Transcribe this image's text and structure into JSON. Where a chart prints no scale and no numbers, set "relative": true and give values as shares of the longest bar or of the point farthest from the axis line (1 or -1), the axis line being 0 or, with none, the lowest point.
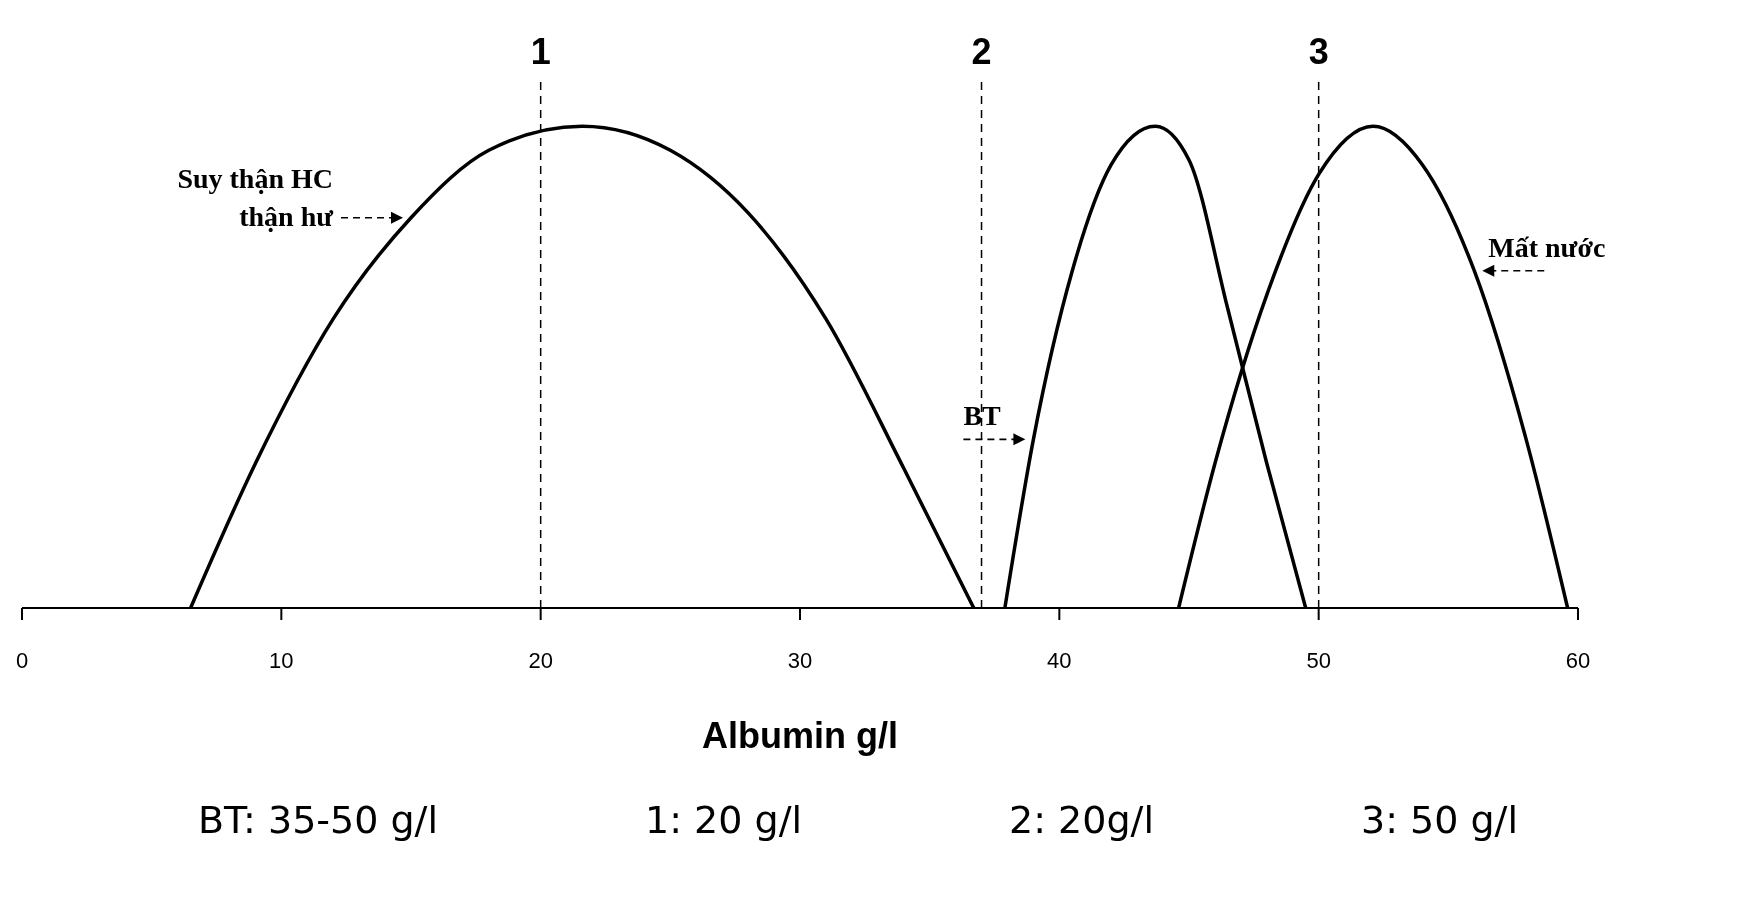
{
  "chart_data": {
    "type": "line",
    "relative": true,
    "xlabel": "Albumin g/l",
    "xlim": [
      0,
      60
    ],
    "xticks": [
      0,
      10,
      20,
      30,
      40,
      50,
      60
    ],
    "grid": false,
    "legend": false,
    "marker": "none",
    "line_style": "solid",
    "series": [
      {
        "name": "Suy thận HC\nthận hư",
        "color": "#000000",
        "x": [
          6.5,
          9,
          12,
          15,
          18,
          21.6,
          25,
          28,
          31,
          34,
          36.7
        ],
        "values": [
          0,
          0.3,
          0.6,
          0.81,
          0.95,
          1,
          0.95,
          0.82,
          0.6,
          0.29,
          0
        ]
      },
      {
        "name": "BT",
        "color": "#000000",
        "x": [
          37.9,
          39,
          40.5,
          42,
          43.7,
          45,
          46.5,
          48,
          49.5
        ],
        "values": [
          0,
          0.35,
          0.7,
          0.92,
          1,
          0.93,
          0.62,
          0.3,
          0
        ]
      },
      {
        "name": "Mất nước",
        "color": "#000000",
        "x": [
          44.6,
          46,
          48,
          50,
          52.1,
          54,
          56,
          58,
          59.6
        ],
        "values": [
          0,
          0.3,
          0.65,
          0.9,
          1,
          0.92,
          0.7,
          0.35,
          0
        ]
      }
    ],
    "ref_lines": [
      {
        "axis": "x",
        "value": 20,
        "color": "#000000",
        "line_style": "dashed"
      },
      {
        "axis": "x",
        "value": 37,
        "color": "#000000",
        "line_style": "dashed"
      },
      {
        "axis": "x",
        "value": 50,
        "color": "#000000",
        "line_style": "dashed"
      }
    ],
    "annotations": [
      "1",
      "2",
      "3",
      "BT: 35-50 g/l",
      "1: 20 g/l",
      "2: 20g/l",
      "3: 50 g/l"
    ]
  }
}
